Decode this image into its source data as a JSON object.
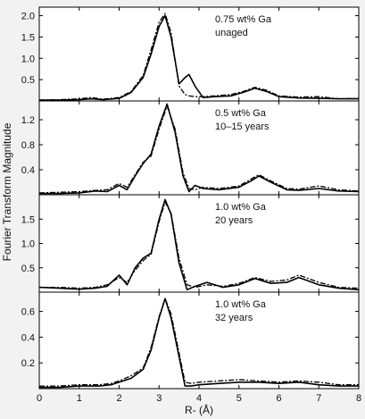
{
  "chart_data": [
    {
      "type": "line",
      "annotation": [
        "0.75 wt% Ga",
        "unaged"
      ],
      "ylim": [
        0,
        2.2
      ],
      "yticks": [
        0.5,
        1.0,
        1.5,
        2.0
      ],
      "ytick_labels": [
        "0.5",
        "1.0",
        "1.5",
        "2.0"
      ],
      "series": [
        {
          "style": "solid",
          "x": [
            0,
            0.5,
            1.0,
            1.3,
            1.6,
            2.0,
            2.3,
            2.6,
            2.8,
            3.0,
            3.15,
            3.3,
            3.5,
            3.65,
            3.75,
            3.9,
            4.1,
            4.4,
            4.8,
            5.1,
            5.4,
            5.7,
            6.0,
            6.5,
            7.0,
            7.5,
            8.0
          ],
          "y": [
            0.02,
            0.02,
            0.03,
            0.05,
            0.03,
            0.06,
            0.2,
            0.55,
            1.1,
            1.75,
            2.0,
            1.5,
            0.4,
            0.55,
            0.62,
            0.35,
            0.08,
            0.1,
            0.12,
            0.2,
            0.3,
            0.22,
            0.1,
            0.07,
            0.06,
            0.05,
            0.05
          ]
        },
        {
          "style": "dashed",
          "x": [
            0,
            0.5,
            1.0,
            1.3,
            1.6,
            2.0,
            2.3,
            2.6,
            2.8,
            3.0,
            3.15,
            3.3,
            3.5,
            3.65,
            3.75,
            3.9,
            4.1,
            4.4,
            4.8,
            5.1,
            5.4,
            5.7,
            6.0,
            6.5,
            7.0,
            7.5,
            8.0
          ],
          "y": [
            0.02,
            0.03,
            0.05,
            0.08,
            0.04,
            0.08,
            0.22,
            0.6,
            1.2,
            1.85,
            2.05,
            1.6,
            0.35,
            0.15,
            0.12,
            0.1,
            0.1,
            0.12,
            0.15,
            0.22,
            0.32,
            0.25,
            0.12,
            0.09,
            0.1,
            0.05,
            0.06
          ]
        }
      ]
    },
    {
      "type": "line",
      "annotation": [
        "0.5 wt% Ga",
        "10–15 years"
      ],
      "ylim": [
        0,
        1.5
      ],
      "yticks": [
        0.4,
        0.8,
        1.2
      ],
      "ytick_labels": [
        "0.4",
        "0.8",
        "1.2"
      ],
      "series": [
        {
          "style": "solid",
          "x": [
            0,
            0.5,
            1.0,
            1.4,
            1.7,
            2.0,
            2.2,
            2.4,
            2.6,
            2.8,
            3.0,
            3.2,
            3.4,
            3.6,
            3.75,
            3.9,
            4.1,
            4.5,
            5.0,
            5.3,
            5.5,
            5.8,
            6.2,
            6.5,
            7.0,
            7.5,
            8.0
          ],
          "y": [
            0.02,
            0.02,
            0.03,
            0.06,
            0.05,
            0.15,
            0.08,
            0.3,
            0.5,
            0.65,
            1.1,
            1.45,
            1.0,
            0.3,
            0.05,
            0.15,
            0.1,
            0.08,
            0.12,
            0.22,
            0.3,
            0.2,
            0.08,
            0.07,
            0.1,
            0.06,
            0.05
          ]
        },
        {
          "style": "dashed",
          "x": [
            0,
            0.5,
            1.0,
            1.4,
            1.7,
            2.0,
            2.2,
            2.4,
            2.6,
            2.8,
            3.0,
            3.2,
            3.4,
            3.6,
            3.75,
            3.9,
            4.1,
            4.5,
            5.0,
            5.3,
            5.5,
            5.8,
            6.2,
            6.5,
            7.0,
            7.5,
            8.0
          ],
          "y": [
            0.03,
            0.04,
            0.05,
            0.07,
            0.08,
            0.18,
            0.12,
            0.32,
            0.52,
            0.62,
            1.05,
            1.42,
            1.05,
            0.35,
            0.1,
            0.08,
            0.12,
            0.1,
            0.14,
            0.25,
            0.32,
            0.22,
            0.1,
            0.09,
            0.14,
            0.08,
            0.06
          ]
        }
      ]
    },
    {
      "type": "line",
      "annotation": [
        "1.0 wt% Ga",
        "20 years"
      ],
      "ylim": [
        0,
        2.0
      ],
      "yticks": [
        0.5,
        1.0,
        1.5
      ],
      "ytick_labels": [
        "0.5",
        "1.0",
        "1.5"
      ],
      "series": [
        {
          "style": "solid",
          "x": [
            0,
            0.5,
            1.0,
            1.4,
            1.7,
            2.0,
            2.2,
            2.4,
            2.6,
            2.8,
            3.0,
            3.15,
            3.3,
            3.5,
            3.7,
            3.9,
            4.2,
            4.6,
            5.0,
            5.4,
            5.8,
            6.2,
            6.5,
            7.0,
            7.5,
            8.0
          ],
          "y": [
            0.1,
            0.08,
            0.06,
            0.08,
            0.12,
            0.35,
            0.15,
            0.5,
            0.7,
            0.8,
            1.5,
            1.9,
            1.6,
            0.6,
            0.05,
            0.12,
            0.2,
            0.1,
            0.15,
            0.28,
            0.18,
            0.2,
            0.3,
            0.15,
            0.08,
            0.05
          ]
        },
        {
          "style": "dashed",
          "x": [
            0,
            0.5,
            1.0,
            1.4,
            1.7,
            2.0,
            2.2,
            2.4,
            2.6,
            2.8,
            3.0,
            3.15,
            3.3,
            3.5,
            3.7,
            3.9,
            4.2,
            4.6,
            5.0,
            5.4,
            5.8,
            6.2,
            6.5,
            7.0,
            7.5,
            8.0
          ],
          "y": [
            0.1,
            0.1,
            0.08,
            0.1,
            0.15,
            0.3,
            0.2,
            0.45,
            0.65,
            0.78,
            1.45,
            1.85,
            1.62,
            0.7,
            0.15,
            0.1,
            0.15,
            0.12,
            0.18,
            0.3,
            0.22,
            0.25,
            0.35,
            0.2,
            0.1,
            0.08
          ]
        }
      ]
    },
    {
      "type": "line",
      "annotation": [
        "1.0 wt% Ga",
        "32 years"
      ],
      "ylim": [
        0,
        0.75
      ],
      "yticks": [
        0.2,
        0.4,
        0.6
      ],
      "ytick_labels": [
        "0.2",
        "0.4",
        "0.6"
      ],
      "series": [
        {
          "style": "solid",
          "x": [
            0,
            0.5,
            1.0,
            1.5,
            1.8,
            2.0,
            2.3,
            2.6,
            2.8,
            3.0,
            3.15,
            3.3,
            3.5,
            3.65,
            3.8,
            4.0,
            4.5,
            5.0,
            5.5,
            6.0,
            6.5,
            7.0,
            7.5,
            8.0
          ],
          "y": [
            0.01,
            0.01,
            0.02,
            0.02,
            0.03,
            0.05,
            0.08,
            0.15,
            0.3,
            0.55,
            0.7,
            0.55,
            0.25,
            0.02,
            0.02,
            0.03,
            0.04,
            0.05,
            0.05,
            0.04,
            0.05,
            0.03,
            0.02,
            0.02
          ]
        },
        {
          "style": "dashed",
          "x": [
            0,
            0.5,
            1.0,
            1.5,
            1.8,
            2.0,
            2.3,
            2.6,
            2.8,
            3.0,
            3.15,
            3.3,
            3.5,
            3.65,
            3.8,
            4.0,
            4.5,
            5.0,
            5.5,
            6.0,
            6.5,
            7.0,
            7.5,
            8.0
          ],
          "y": [
            0.02,
            0.02,
            0.03,
            0.03,
            0.04,
            0.06,
            0.1,
            0.16,
            0.32,
            0.56,
            0.7,
            0.58,
            0.28,
            0.05,
            0.04,
            0.05,
            0.06,
            0.07,
            0.06,
            0.05,
            0.06,
            0.05,
            0.03,
            0.03
          ]
        }
      ]
    }
  ],
  "xaxis": {
    "label": "R- (Å)",
    "xlim": [
      0,
      8
    ],
    "ticks": [
      0,
      1,
      2,
      3,
      4,
      5,
      6,
      7,
      8
    ],
    "tick_labels": [
      "0",
      "1",
      "2",
      "3",
      "4",
      "5",
      "6",
      "7",
      "8"
    ]
  },
  "yaxis": {
    "label": "Fourier Transform Magnitude"
  }
}
